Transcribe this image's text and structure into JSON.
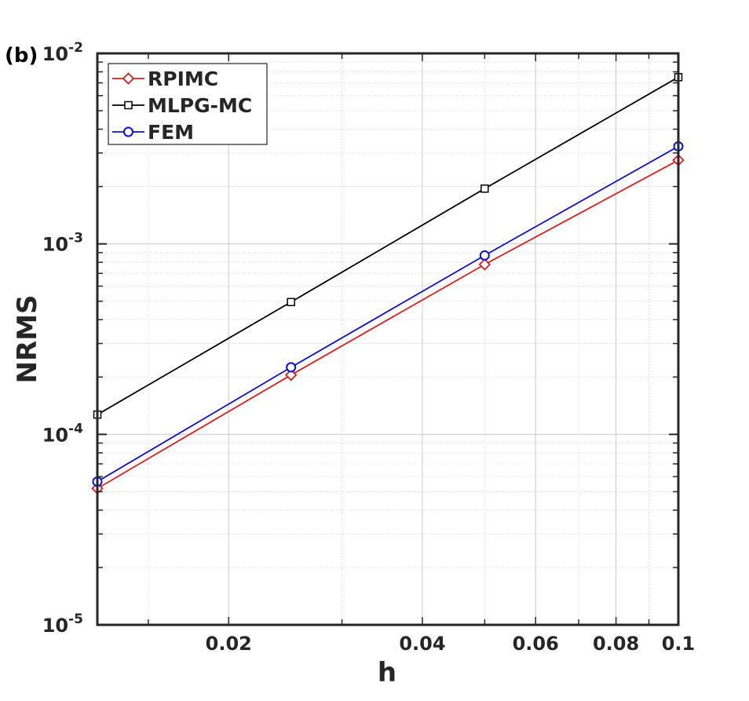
{
  "chart_data": {
    "type": "line",
    "panel_label": "(b)",
    "xlabel": "h",
    "ylabel": "NRMS",
    "xscale": "log",
    "yscale": "log",
    "xlim": [
      0.0125,
      0.1
    ],
    "ylim": [
      1e-05,
      0.01
    ],
    "xticks": [
      {
        "value": 0.02,
        "label": "0.02"
      },
      {
        "value": 0.04,
        "label": "0.04"
      },
      {
        "value": 0.06,
        "label": "0.06"
      },
      {
        "value": 0.08,
        "label": "0.08"
      },
      {
        "value": 0.1,
        "label": "0.1"
      }
    ],
    "yticks": [
      {
        "value": 1e-05,
        "base": "10",
        "exp": "-5"
      },
      {
        "value": 0.0001,
        "base": "10",
        "exp": "-4"
      },
      {
        "value": 0.001,
        "base": "10",
        "exp": "-3"
      },
      {
        "value": 0.01,
        "base": "10",
        "exp": "-2"
      }
    ],
    "grid": true,
    "legend_position": "top-left",
    "x": [
      0.0125,
      0.025,
      0.05,
      0.1
    ],
    "series": [
      {
        "name": "RPIMC",
        "color": "#d62020",
        "marker": "diamond",
        "values": [
          5.2e-05,
          0.000205,
          0.00078,
          0.00275
        ]
      },
      {
        "name": "MLPG-MC",
        "color": "#000000",
        "marker": "square",
        "values": [
          0.000127,
          0.000495,
          0.00195,
          0.0075
        ]
      },
      {
        "name": "FEM",
        "color": "#1010c8",
        "marker": "circle",
        "values": [
          5.65e-05,
          0.000225,
          0.00087,
          0.00325
        ]
      }
    ]
  }
}
